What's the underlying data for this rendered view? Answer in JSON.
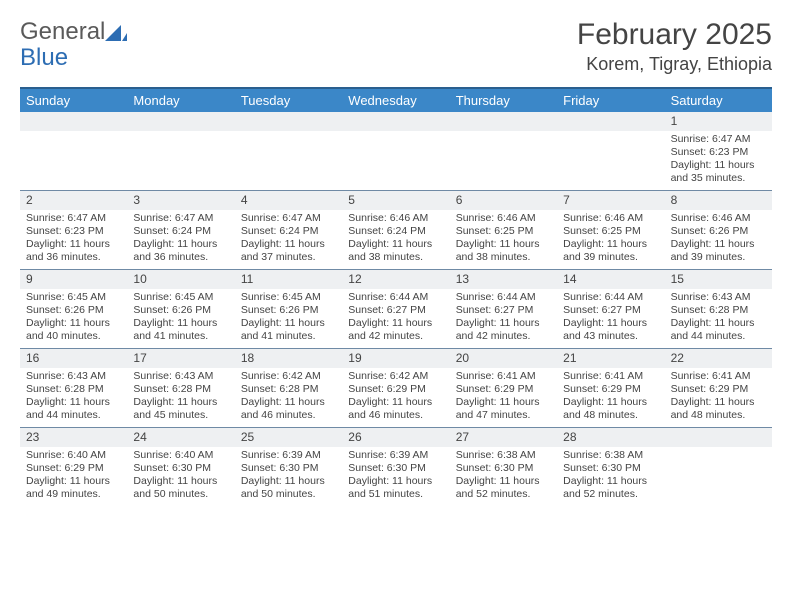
{
  "brand": {
    "part1": "General",
    "part2": "Blue"
  },
  "title": "February 2025",
  "location": "Korem, Tigray, Ethiopia",
  "colors": {
    "header_bg": "#3b87c8",
    "header_border": "#2a5f8f",
    "week_border": "#6f8aa5",
    "numrow_bg": "#eef0f2",
    "text": "#444444",
    "logo_gray": "#5a5a5a",
    "logo_blue": "#2d6db3"
  },
  "day_headers": [
    "Sunday",
    "Monday",
    "Tuesday",
    "Wednesday",
    "Thursday",
    "Friday",
    "Saturday"
  ],
  "weeks": [
    [
      {
        "n": "",
        "sr": "",
        "ss": "",
        "dl": ""
      },
      {
        "n": "",
        "sr": "",
        "ss": "",
        "dl": ""
      },
      {
        "n": "",
        "sr": "",
        "ss": "",
        "dl": ""
      },
      {
        "n": "",
        "sr": "",
        "ss": "",
        "dl": ""
      },
      {
        "n": "",
        "sr": "",
        "ss": "",
        "dl": ""
      },
      {
        "n": "",
        "sr": "",
        "ss": "",
        "dl": ""
      },
      {
        "n": "1",
        "sr": "Sunrise: 6:47 AM",
        "ss": "Sunset: 6:23 PM",
        "dl": "Daylight: 11 hours and 35 minutes."
      }
    ],
    [
      {
        "n": "2",
        "sr": "Sunrise: 6:47 AM",
        "ss": "Sunset: 6:23 PM",
        "dl": "Daylight: 11 hours and 36 minutes."
      },
      {
        "n": "3",
        "sr": "Sunrise: 6:47 AM",
        "ss": "Sunset: 6:24 PM",
        "dl": "Daylight: 11 hours and 36 minutes."
      },
      {
        "n": "4",
        "sr": "Sunrise: 6:47 AM",
        "ss": "Sunset: 6:24 PM",
        "dl": "Daylight: 11 hours and 37 minutes."
      },
      {
        "n": "5",
        "sr": "Sunrise: 6:46 AM",
        "ss": "Sunset: 6:24 PM",
        "dl": "Daylight: 11 hours and 38 minutes."
      },
      {
        "n": "6",
        "sr": "Sunrise: 6:46 AM",
        "ss": "Sunset: 6:25 PM",
        "dl": "Daylight: 11 hours and 38 minutes."
      },
      {
        "n": "7",
        "sr": "Sunrise: 6:46 AM",
        "ss": "Sunset: 6:25 PM",
        "dl": "Daylight: 11 hours and 39 minutes."
      },
      {
        "n": "8",
        "sr": "Sunrise: 6:46 AM",
        "ss": "Sunset: 6:26 PM",
        "dl": "Daylight: 11 hours and 39 minutes."
      }
    ],
    [
      {
        "n": "9",
        "sr": "Sunrise: 6:45 AM",
        "ss": "Sunset: 6:26 PM",
        "dl": "Daylight: 11 hours and 40 minutes."
      },
      {
        "n": "10",
        "sr": "Sunrise: 6:45 AM",
        "ss": "Sunset: 6:26 PM",
        "dl": "Daylight: 11 hours and 41 minutes."
      },
      {
        "n": "11",
        "sr": "Sunrise: 6:45 AM",
        "ss": "Sunset: 6:26 PM",
        "dl": "Daylight: 11 hours and 41 minutes."
      },
      {
        "n": "12",
        "sr": "Sunrise: 6:44 AM",
        "ss": "Sunset: 6:27 PM",
        "dl": "Daylight: 11 hours and 42 minutes."
      },
      {
        "n": "13",
        "sr": "Sunrise: 6:44 AM",
        "ss": "Sunset: 6:27 PM",
        "dl": "Daylight: 11 hours and 42 minutes."
      },
      {
        "n": "14",
        "sr": "Sunrise: 6:44 AM",
        "ss": "Sunset: 6:27 PM",
        "dl": "Daylight: 11 hours and 43 minutes."
      },
      {
        "n": "15",
        "sr": "Sunrise: 6:43 AM",
        "ss": "Sunset: 6:28 PM",
        "dl": "Daylight: 11 hours and 44 minutes."
      }
    ],
    [
      {
        "n": "16",
        "sr": "Sunrise: 6:43 AM",
        "ss": "Sunset: 6:28 PM",
        "dl": "Daylight: 11 hours and 44 minutes."
      },
      {
        "n": "17",
        "sr": "Sunrise: 6:43 AM",
        "ss": "Sunset: 6:28 PM",
        "dl": "Daylight: 11 hours and 45 minutes."
      },
      {
        "n": "18",
        "sr": "Sunrise: 6:42 AM",
        "ss": "Sunset: 6:28 PM",
        "dl": "Daylight: 11 hours and 46 minutes."
      },
      {
        "n": "19",
        "sr": "Sunrise: 6:42 AM",
        "ss": "Sunset: 6:29 PM",
        "dl": "Daylight: 11 hours and 46 minutes."
      },
      {
        "n": "20",
        "sr": "Sunrise: 6:41 AM",
        "ss": "Sunset: 6:29 PM",
        "dl": "Daylight: 11 hours and 47 minutes."
      },
      {
        "n": "21",
        "sr": "Sunrise: 6:41 AM",
        "ss": "Sunset: 6:29 PM",
        "dl": "Daylight: 11 hours and 48 minutes."
      },
      {
        "n": "22",
        "sr": "Sunrise: 6:41 AM",
        "ss": "Sunset: 6:29 PM",
        "dl": "Daylight: 11 hours and 48 minutes."
      }
    ],
    [
      {
        "n": "23",
        "sr": "Sunrise: 6:40 AM",
        "ss": "Sunset: 6:29 PM",
        "dl": "Daylight: 11 hours and 49 minutes."
      },
      {
        "n": "24",
        "sr": "Sunrise: 6:40 AM",
        "ss": "Sunset: 6:30 PM",
        "dl": "Daylight: 11 hours and 50 minutes."
      },
      {
        "n": "25",
        "sr": "Sunrise: 6:39 AM",
        "ss": "Sunset: 6:30 PM",
        "dl": "Daylight: 11 hours and 50 minutes."
      },
      {
        "n": "26",
        "sr": "Sunrise: 6:39 AM",
        "ss": "Sunset: 6:30 PM",
        "dl": "Daylight: 11 hours and 51 minutes."
      },
      {
        "n": "27",
        "sr": "Sunrise: 6:38 AM",
        "ss": "Sunset: 6:30 PM",
        "dl": "Daylight: 11 hours and 52 minutes."
      },
      {
        "n": "28",
        "sr": "Sunrise: 6:38 AM",
        "ss": "Sunset: 6:30 PM",
        "dl": "Daylight: 11 hours and 52 minutes."
      },
      {
        "n": "",
        "sr": "",
        "ss": "",
        "dl": ""
      }
    ]
  ]
}
